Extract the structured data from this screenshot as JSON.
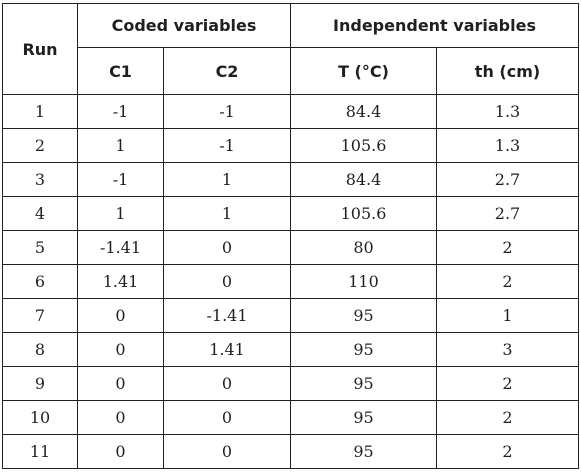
{
  "table": {
    "headers": {
      "run": "Run",
      "coded_group": "Coded variables",
      "independent_group": "Independent variables",
      "c1": "C1",
      "c2": "C2",
      "t": "T (°C)",
      "th": "th (cm)"
    },
    "rows": [
      {
        "run": "1",
        "c1": "-1",
        "c2": "-1",
        "t": "84.4",
        "th": "1.3"
      },
      {
        "run": "2",
        "c1": "1",
        "c2": "-1",
        "t": "105.6",
        "th": "1.3"
      },
      {
        "run": "3",
        "c1": "-1",
        "c2": "1",
        "t": "84.4",
        "th": "2.7"
      },
      {
        "run": "4",
        "c1": "1",
        "c2": "1",
        "t": "105.6",
        "th": "2.7"
      },
      {
        "run": "5",
        "c1": "-1.41",
        "c2": "0",
        "t": "80",
        "th": "2"
      },
      {
        "run": "6",
        "c1": "1.41",
        "c2": "0",
        "t": "110",
        "th": "2"
      },
      {
        "run": "7",
        "c1": "0",
        "c2": "-1.41",
        "t": "95",
        "th": "1"
      },
      {
        "run": "8",
        "c1": "0",
        "c2": "1.41",
        "t": "95",
        "th": "3"
      },
      {
        "run": "9",
        "c1": "0",
        "c2": "0",
        "t": "95",
        "th": "2"
      },
      {
        "run": "10",
        "c1": "0",
        "c2": "0",
        "t": "95",
        "th": "2"
      },
      {
        "run": "11",
        "c1": "0",
        "c2": "0",
        "t": "95",
        "th": "2"
      }
    ]
  }
}
